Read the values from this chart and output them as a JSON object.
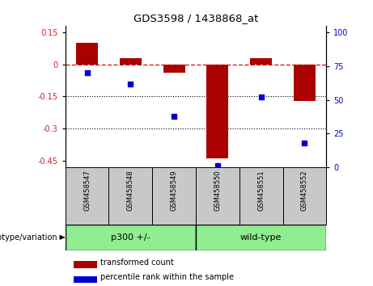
{
  "title": "GDS3598 / 1438868_at",
  "samples": [
    "GSM458547",
    "GSM458548",
    "GSM458549",
    "GSM458550",
    "GSM458551",
    "GSM458552"
  ],
  "bar_values": [
    0.1,
    0.03,
    -0.04,
    -0.44,
    0.03,
    -0.17
  ],
  "scatter_values": [
    70,
    62,
    38,
    1,
    52,
    18
  ],
  "ylim_left": [
    -0.48,
    0.18
  ],
  "ylim_right": [
    0,
    105
  ],
  "yticks_left": [
    0.15,
    0,
    -0.15,
    -0.3,
    -0.45
  ],
  "yticks_right": [
    100,
    75,
    50,
    25,
    0
  ],
  "bar_color": "#aa0000",
  "scatter_color": "#0000cc",
  "dashed_line_color": "#cc2222",
  "dotted_line_color": "#000000",
  "background_color": "#ffffff",
  "group1_label": "p300 +/-",
  "group2_label": "wild-type",
  "group1_count": 3,
  "group2_count": 3,
  "group_color": "#90ee90",
  "sample_bg_color": "#c8c8c8",
  "legend_bar_label": "transformed count",
  "legend_scatter_label": "percentile rank within the sample",
  "genotype_label": "genotype/variation"
}
